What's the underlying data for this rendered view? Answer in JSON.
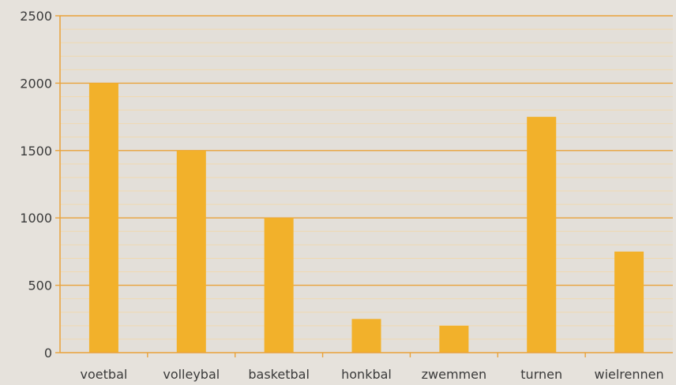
{
  "chart_data": {
    "type": "bar",
    "title": "",
    "xlabel": "",
    "ylabel": "",
    "categories": [
      "voetbal",
      "volleybal",
      "basketbal",
      "honkbal",
      "zwemmen",
      "turnen",
      "wielrennen"
    ],
    "values": [
      2000,
      1500,
      1000,
      250,
      200,
      1750,
      750
    ],
    "ylim": [
      0,
      2500
    ],
    "major_ticks": [
      0,
      500,
      1000,
      1500,
      2000,
      2500
    ],
    "minor_step": 100,
    "grid": true,
    "legend": "none",
    "colors": {
      "bar": "#f2b12b",
      "major_grid": "#e9a23a",
      "minor_grid": "#f0d9b0",
      "plot_bg": "#e3dfd9",
      "axis": "#e9a23a"
    }
  }
}
